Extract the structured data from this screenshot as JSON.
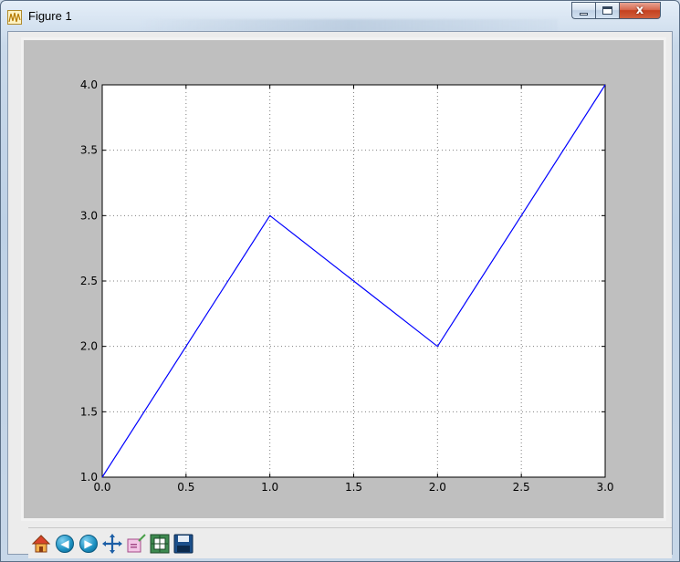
{
  "window": {
    "title": "Figure 1",
    "close_glyph": "x"
  },
  "icons": {
    "app": "matplotlib-figure-icon",
    "minimize": "minimize-icon",
    "maximize": "maximize-icon",
    "close": "close-icon"
  },
  "toolbar": {
    "buttons": [
      {
        "name": "home-button",
        "icon": "home-icon"
      },
      {
        "name": "back-button",
        "icon": "back-arrow-icon"
      },
      {
        "name": "forward-button",
        "icon": "forward-arrow-icon"
      },
      {
        "name": "pan-button",
        "icon": "pan-move-icon"
      },
      {
        "name": "zoom-button",
        "icon": "zoom-rectangle-icon"
      },
      {
        "name": "subplots-button",
        "icon": "subplots-configure-icon"
      },
      {
        "name": "save-button",
        "icon": "save-disk-icon"
      }
    ]
  },
  "colors": {
    "line": "#0000ff",
    "figure_bg": "#bfbfbf",
    "axes_bg": "#ffffff",
    "grid": "#808080"
  },
  "chart_data": {
    "type": "line",
    "x": [
      0.0,
      1.0,
      2.0,
      3.0
    ],
    "series": [
      {
        "values": [
          1.0,
          3.0,
          2.0,
          4.0
        ]
      }
    ],
    "xlim": [
      0.0,
      3.0
    ],
    "ylim": [
      1.0,
      4.0
    ],
    "xticks": [
      "0.0",
      "0.5",
      "1.0",
      "1.5",
      "2.0",
      "2.5",
      "3.0"
    ],
    "yticks": [
      "1.0",
      "1.5",
      "2.0",
      "2.5",
      "3.0",
      "3.5",
      "4.0"
    ],
    "grid": true,
    "title": "",
    "xlabel": "",
    "ylabel": ""
  }
}
